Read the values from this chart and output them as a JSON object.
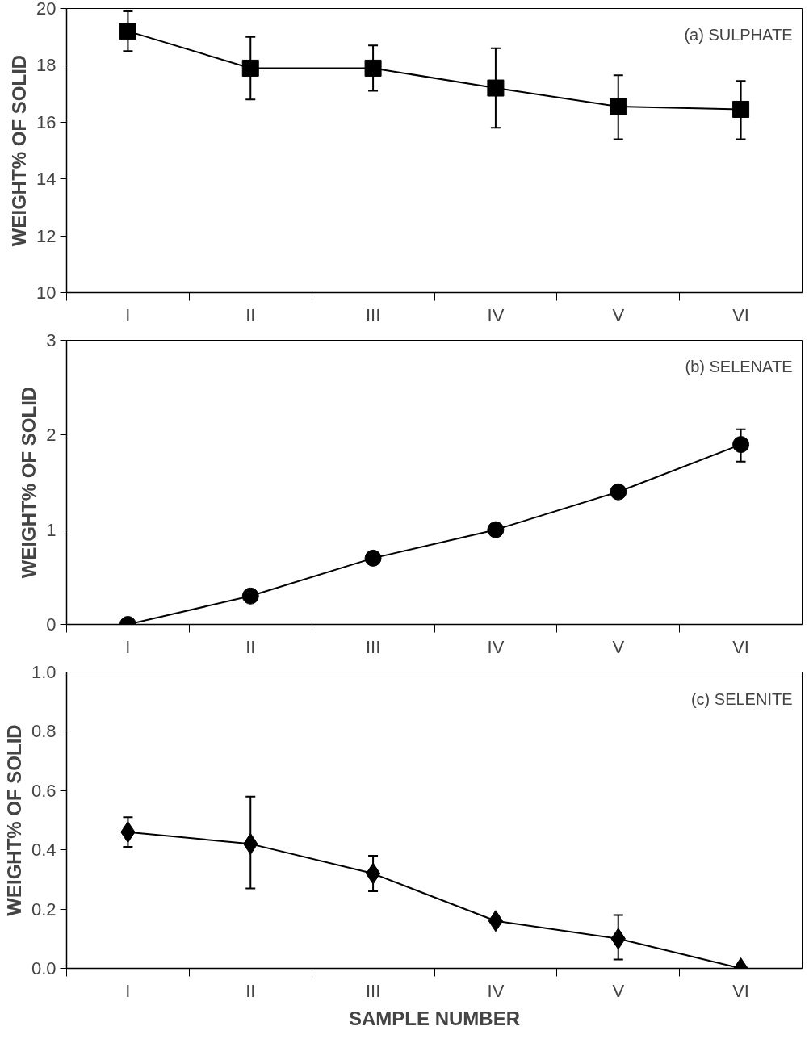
{
  "chart_data": [
    {
      "type": "line",
      "categories": [
        "I",
        "II",
        "III",
        "IV",
        "V",
        "VI"
      ],
      "values": [
        19.2,
        17.9,
        17.9,
        17.2,
        16.55,
        16.45
      ],
      "errors": [
        [
          18.5,
          19.9
        ],
        [
          16.8,
          19.0
        ],
        [
          17.1,
          18.7
        ],
        [
          15.8,
          18.6
        ],
        [
          15.4,
          17.65
        ],
        [
          15.4,
          17.45
        ]
      ],
      "color": "#000000",
      "marker": "square",
      "line_style": "solid",
      "ylim": [
        10,
        20
      ],
      "yticks": [
        10,
        12,
        14,
        16,
        18,
        20
      ],
      "ylabel": "WEIGHT% OF SOLID",
      "annotations": [
        "(a) SULPHATE"
      ]
    },
    {
      "type": "line",
      "categories": [
        "I",
        "II",
        "III",
        "IV",
        "V",
        "VI"
      ],
      "values": [
        0,
        0.3,
        0.7,
        1.0,
        1.4,
        1.9
      ],
      "errors": [
        null,
        null,
        null,
        null,
        null,
        [
          1.72,
          2.06
        ]
      ],
      "color": "#000000",
      "marker": "circle",
      "line_style": "solid",
      "ylim": [
        0,
        3
      ],
      "yticks": [
        0,
        1,
        2,
        3
      ],
      "ylabel": "WEIGHT% OF SOLID",
      "annotations": [
        "(b) SELENATE"
      ]
    },
    {
      "type": "line",
      "categories": [
        "I",
        "II",
        "III",
        "IV",
        "V",
        "VI"
      ],
      "values": [
        0.46,
        0.42,
        0.32,
        0.16,
        0.1,
        0.0
      ],
      "errors": [
        [
          0.41,
          0.51
        ],
        [
          0.27,
          0.58
        ],
        [
          0.26,
          0.38
        ],
        null,
        [
          0.03,
          0.18
        ],
        null
      ],
      "color": "#000000",
      "marker": "diamond",
      "line_style": "solid",
      "ylim": [
        0,
        1.0
      ],
      "yticks": [
        {
          "value": 0,
          "label": "0.0"
        },
        {
          "value": 0.2,
          "label": "0.2"
        },
        {
          "value": 0.4,
          "label": "0.4"
        },
        {
          "value": 0.6,
          "label": "0.6"
        },
        {
          "value": 0.8,
          "label": "0.8"
        },
        {
          "value": 1.0,
          "label": "1.0"
        }
      ],
      "ylabel": "WEIGHT% OF SOLID",
      "xlabel": "SAMPLE NUMBER",
      "annotations": [
        "(c) SELENITE"
      ]
    }
  ]
}
